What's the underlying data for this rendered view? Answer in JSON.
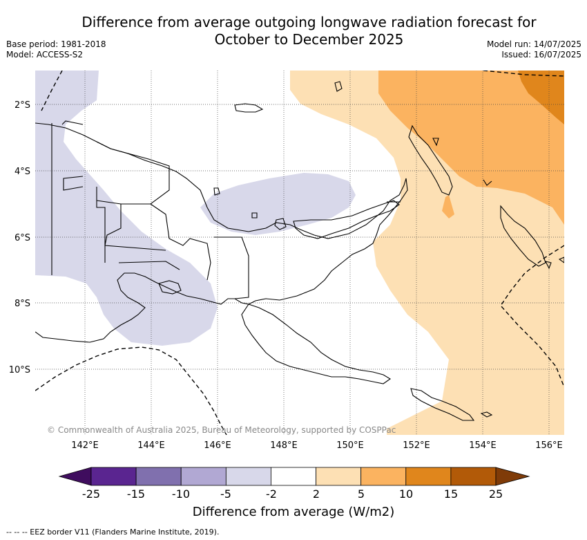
{
  "title_line1": "Difference from average outgoing longwave radiation forecast for",
  "title_line2": "October to December 2025",
  "meta_left": [
    "Base period: 1981-2018",
    "Model: ACCESS-S2"
  ],
  "meta_right": [
    "Model run: 14/07/2025",
    "Issued: 16/07/2025"
  ],
  "copyright": "© Commonwealth of Australia 2025, Bureau of Meteorology, supported by COSPPac",
  "lat_labels": [
    "2°S",
    "4°S",
    "6°S",
    "8°S",
    "10°S"
  ],
  "lon_labels": [
    "142°E",
    "144°E",
    "146°E",
    "148°E",
    "150°E",
    "152°E",
    "154°E",
    "156°E"
  ],
  "colorbar": {
    "title": "Difference from average (W/m2)",
    "labels": [
      "-25",
      "-15",
      "-10",
      "-5",
      "-2",
      "2",
      "5",
      "10",
      "15",
      "25"
    ],
    "colors": [
      "#3f0d5e",
      "#5a2590",
      "#8070ae",
      "#b1a8d3",
      "#d8d8ea",
      "#ffffff",
      "#fde0b4",
      "#fbb360",
      "#e0861c",
      "#b25a08",
      "#7f3b08"
    ]
  },
  "footer": "--  --  -- EEZ border V11 (Flanders Marine Institute, 2019)."
}
